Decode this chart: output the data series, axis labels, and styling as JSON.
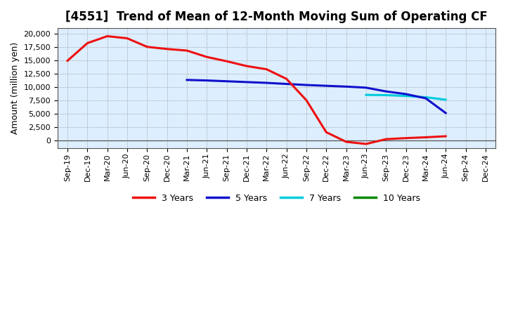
{
  "title": "[4551]  Trend of Mean of 12-Month Moving Sum of Operating CF",
  "ylabel": "Amount (million yen)",
  "background_color": "#ffffff",
  "plot_bg_color": "#ddeeff",
  "grid_color": "#999999",
  "ylim": [
    -1500,
    21000
  ],
  "yticks": [
    0,
    2500,
    5000,
    7500,
    10000,
    12500,
    15000,
    17500,
    20000
  ],
  "x_labels": [
    "Sep-19",
    "Dec-19",
    "Mar-20",
    "Jun-20",
    "Sep-20",
    "Dec-20",
    "Mar-21",
    "Jun-21",
    "Sep-21",
    "Dec-21",
    "Mar-22",
    "Jun-22",
    "Sep-22",
    "Dec-22",
    "Mar-23",
    "Jun-23",
    "Sep-23",
    "Dec-23",
    "Mar-24",
    "Jun-24",
    "Sep-24",
    "Dec-24"
  ],
  "line_3y_color": "#ee1111",
  "line_5y_color": "#1111cc",
  "line_7y_color": "#00ccdd",
  "line_10y_color": "#008800",
  "line_width": 2.2,
  "legend_labels": [
    "3 Years",
    "5 Years",
    "7 Years",
    "10 Years"
  ],
  "series_3y": {
    "x": [
      "Sep-19",
      "Dec-19",
      "Mar-20",
      "Jun-20",
      "Sep-20",
      "Dec-20",
      "Mar-21",
      "Jun-21",
      "Sep-21",
      "Dec-21",
      "Mar-22",
      "Jun-22",
      "Sep-22",
      "Dec-22",
      "Mar-23",
      "Jun-23",
      "Sep-23",
      "Dec-23",
      "Mar-24",
      "Jun-24"
    ],
    "y": [
      14900,
      18200,
      19500,
      19100,
      17500,
      17100,
      16800,
      15600,
      14800,
      13900,
      13300,
      11500,
      7500,
      1500,
      -300,
      -700,
      200,
      400,
      550,
      750
    ]
  },
  "series_5y": {
    "x": [
      "Mar-21",
      "Jun-21",
      "Sep-21",
      "Dec-21",
      "Mar-22",
      "Jun-22",
      "Sep-22",
      "Dec-22",
      "Mar-23",
      "Jun-23",
      "Sep-23",
      "Dec-23",
      "Mar-24",
      "Jun-24"
    ],
    "y": [
      11300,
      11200,
      11050,
      10900,
      10750,
      10550,
      10350,
      10200,
      10050,
      9850,
      9150,
      8650,
      7850,
      5100
    ]
  },
  "series_7y": {
    "x": [
      "Jun-23",
      "Sep-23",
      "Dec-23",
      "Mar-24",
      "Jun-24"
    ],
    "y": [
      8500,
      8450,
      8300,
      8050,
      7600
    ]
  },
  "series_10y": {
    "x": [],
    "y": []
  },
  "title_fontsize": 12,
  "ylabel_fontsize": 9,
  "tick_fontsize": 8,
  "legend_fontsize": 9
}
